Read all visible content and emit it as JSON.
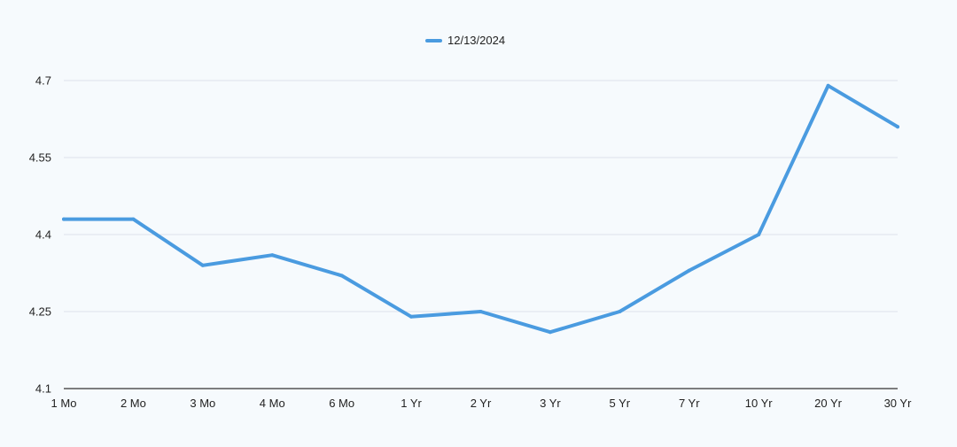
{
  "chart_data": {
    "type": "line",
    "title": "",
    "xlabel": "",
    "ylabel": "",
    "categories": [
      "1 Mo",
      "2 Mo",
      "3 Mo",
      "4 Mo",
      "6 Mo",
      "1 Yr",
      "2 Yr",
      "3 Yr",
      "5 Yr",
      "7 Yr",
      "10 Yr",
      "20 Yr",
      "30 Yr"
    ],
    "series": [
      {
        "name": "12/13/2024",
        "color": "#4a9be0",
        "values": [
          4.43,
          4.43,
          4.34,
          4.36,
          4.32,
          4.24,
          4.25,
          4.21,
          4.25,
          4.33,
          4.4,
          4.69,
          4.61
        ]
      }
    ],
    "ylim": [
      4.1,
      4.7
    ],
    "yticks": [
      "4.1",
      "4.25",
      "4.4",
      "4.55",
      "4.7"
    ],
    "grid": true,
    "legend_position": "top-center"
  }
}
